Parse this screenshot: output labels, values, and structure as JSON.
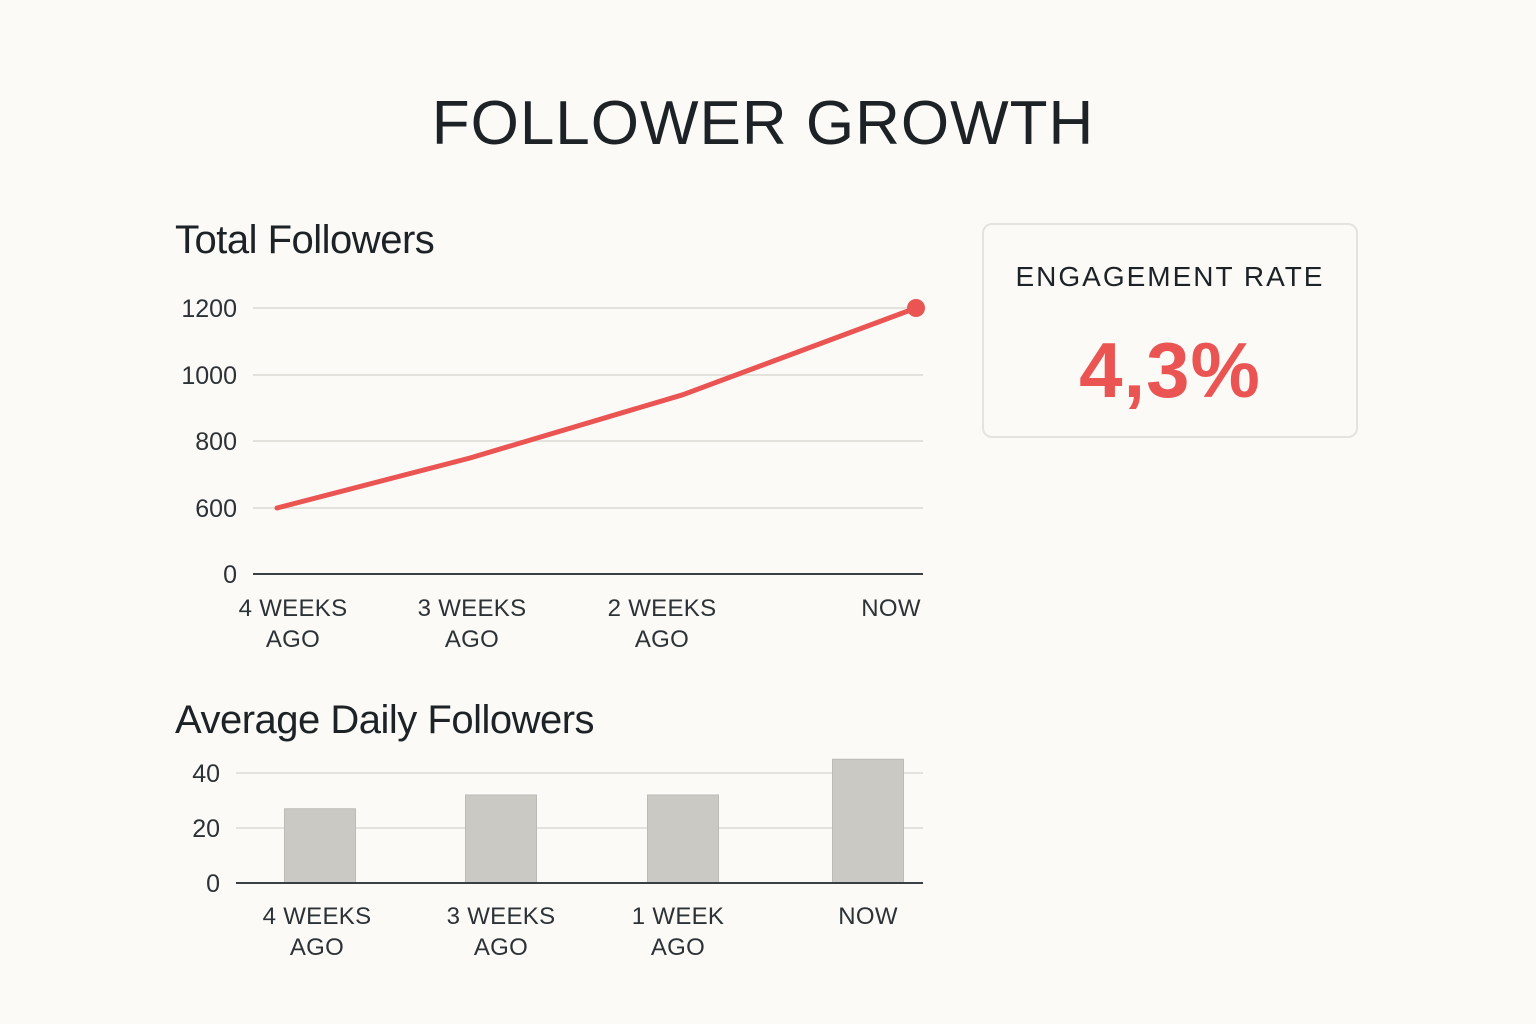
{
  "title": "FOLLOWER GROWTH",
  "engagement": {
    "label": "ENGAGEMENT RATE",
    "value": "4,3%",
    "color": "#ea5553"
  },
  "chart_data": [
    {
      "type": "line",
      "title": "Total Followers",
      "categories": [
        [
          "4 WEEKS",
          "AGO"
        ],
        [
          "3 WEEKS",
          "AGO"
        ],
        [
          "2 WEEKS",
          "AGO"
        ],
        [
          "NOW"
        ]
      ],
      "series": [
        {
          "values": [
            600,
            750,
            940,
            1200
          ],
          "color": "#ea5553"
        }
      ],
      "yticks": [
        0,
        600,
        800,
        1000,
        1200
      ],
      "ylim": [
        0,
        1200
      ],
      "grid": true,
      "end_marker": true
    },
    {
      "type": "bar",
      "title": "Average Daily Followers",
      "categories": [
        [
          "4 WEEKS",
          "AGO"
        ],
        [
          "3 WEEKS",
          "AGO"
        ],
        [
          "1 WEEK",
          "AGO"
        ],
        [
          "NOW"
        ]
      ],
      "values": [
        27,
        32,
        32,
        45
      ],
      "bar_color": "#cbc9c4",
      "yticks": [
        0,
        20,
        40
      ],
      "ylim": [
        0,
        40
      ],
      "grid": true
    }
  ]
}
